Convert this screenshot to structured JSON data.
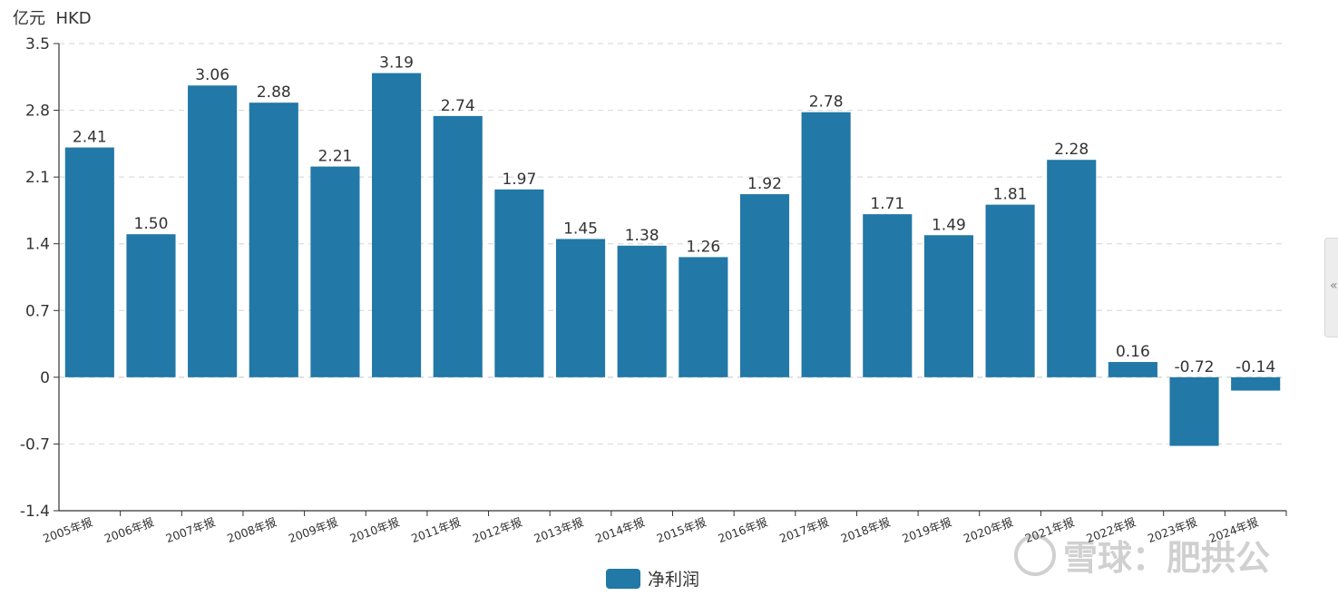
{
  "unit_label": "亿元  HKD",
  "legend": {
    "label": "净利润",
    "color": "#2278a6"
  },
  "side_toggle": {
    "icon": "double-chevron-left-icon",
    "glyph": "«"
  },
  "watermark": {
    "text": "雪球：肥拱公"
  },
  "chart_data": {
    "type": "bar",
    "categories": [
      "2005年报",
      "2006年报",
      "2007年报",
      "2008年报",
      "2009年报",
      "2010年报",
      "2011年报",
      "2012年报",
      "2013年报",
      "2014年报",
      "2015年报",
      "2016年报",
      "2017年报",
      "2018年报",
      "2019年报",
      "2020年报",
      "2021年报",
      "2022年报",
      "2023年报",
      "2024年报"
    ],
    "series": [
      {
        "name": "净利润",
        "values": [
          2.41,
          1.5,
          3.06,
          2.88,
          2.21,
          3.19,
          2.74,
          1.97,
          1.45,
          1.38,
          1.26,
          1.92,
          2.78,
          1.71,
          1.49,
          1.81,
          2.28,
          0.16,
          -0.72,
          -0.14
        ]
      }
    ],
    "data_labels": [
      "2.41",
      "1.50",
      "3.06",
      "2.88",
      "2.21",
      "3.19",
      "2.74",
      "1.97",
      "1.45",
      "1.38",
      "1.26",
      "1.92",
      "2.78",
      "1.71",
      "1.49",
      "1.81",
      "2.28",
      "0.16",
      "-0.72",
      "-0.14"
    ],
    "yticks": [
      "-1.4",
      "-0.7",
      "0",
      "0.7",
      "1.4",
      "2.1",
      "2.8",
      "3.5"
    ],
    "ylim": [
      -1.4,
      3.5
    ],
    "grid": true,
    "legend_position": "bottom-center",
    "bar_color": "#2278a6"
  }
}
